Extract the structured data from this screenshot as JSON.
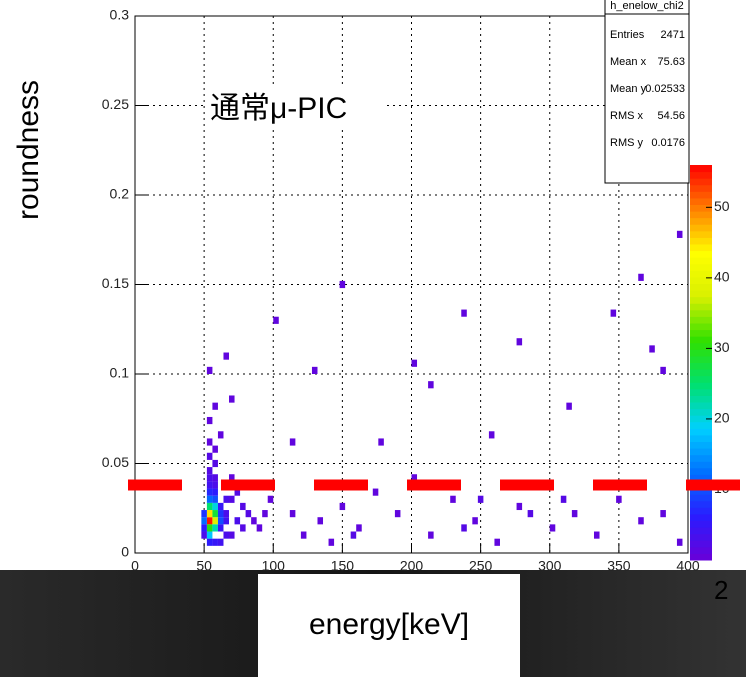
{
  "chart_data": {
    "type": "heatmap",
    "x_label": "energy[keV]",
    "y_label": "roundness",
    "annotation": "通常μ-PIC",
    "cut_text": "2",
    "xlim": [
      0,
      400
    ],
    "ylim": [
      0,
      0.3
    ],
    "xticks": [
      0,
      50,
      100,
      150,
      200,
      250,
      300,
      350,
      400
    ],
    "yticks": [
      0,
      0.05,
      0.1,
      0.15,
      0.2,
      0.25,
      0.3
    ],
    "grid": true,
    "bin_size": [
      4,
      0.004
    ],
    "zlim": [
      0,
      56
    ],
    "zticks": [
      10,
      20,
      30,
      40,
      50
    ],
    "palette": [
      "#6a00d8",
      "#2a1cff",
      "#0070ff",
      "#00d0ff",
      "#00e070",
      "#30e000",
      "#d8f000",
      "#ffff00",
      "#ff8000",
      "#ff0000"
    ],
    "threshold": 0.038,
    "threshold_color": "#ff0000",
    "cells": [
      [
        52,
        0.016,
        55
      ],
      [
        52,
        0.02,
        45
      ],
      [
        56,
        0.016,
        38
      ],
      [
        52,
        0.012,
        30
      ],
      [
        56,
        0.02,
        28
      ],
      [
        48,
        0.016,
        12
      ],
      [
        52,
        0.024,
        25
      ],
      [
        56,
        0.024,
        20
      ],
      [
        52,
        0.008,
        18
      ],
      [
        56,
        0.012,
        22
      ],
      [
        60,
        0.016,
        10
      ],
      [
        60,
        0.02,
        8
      ],
      [
        52,
        0.028,
        12
      ],
      [
        56,
        0.028,
        10
      ],
      [
        48,
        0.02,
        8
      ],
      [
        48,
        0.012,
        6
      ],
      [
        52,
        0.032,
        7
      ],
      [
        56,
        0.032,
        6
      ],
      [
        60,
        0.024,
        5
      ],
      [
        60,
        0.012,
        5
      ],
      [
        64,
        0.016,
        4
      ],
      [
        64,
        0.02,
        3
      ],
      [
        52,
        0.036,
        4
      ],
      [
        56,
        0.036,
        3
      ],
      [
        52,
        0.04,
        3
      ],
      [
        56,
        0.04,
        2
      ],
      [
        52,
        0.044,
        2
      ],
      [
        56,
        0.048,
        2
      ],
      [
        52,
        0.052,
        2
      ],
      [
        56,
        0.056,
        1
      ],
      [
        52,
        0.06,
        1
      ],
      [
        60,
        0.064,
        1
      ],
      [
        52,
        0.072,
        1
      ],
      [
        56,
        0.08,
        1
      ],
      [
        52,
        0.1,
        1
      ],
      [
        64,
        0.108,
        1
      ],
      [
        68,
        0.084,
        1
      ],
      [
        72,
        0.032,
        2
      ],
      [
        76,
        0.024,
        2
      ],
      [
        80,
        0.02,
        2
      ],
      [
        84,
        0.016,
        1
      ],
      [
        88,
        0.012,
        1
      ],
      [
        92,
        0.02,
        1
      ],
      [
        96,
        0.028,
        1
      ],
      [
        68,
        0.028,
        2
      ],
      [
        72,
        0.016,
        3
      ],
      [
        76,
        0.012,
        2
      ],
      [
        64,
        0.028,
        3
      ],
      [
        64,
        0.036,
        2
      ],
      [
        68,
        0.04,
        1
      ],
      [
        60,
        0.004,
        4
      ],
      [
        52,
        0.004,
        6
      ],
      [
        56,
        0.004,
        5
      ],
      [
        48,
        0.008,
        3
      ],
      [
        64,
        0.008,
        3
      ],
      [
        68,
        0.008,
        2
      ],
      [
        112,
        0.02,
        1
      ],
      [
        120,
        0.008,
        1
      ],
      [
        132,
        0.016,
        1
      ],
      [
        140,
        0.004,
        1
      ],
      [
        148,
        0.024,
        1
      ],
      [
        160,
        0.012,
        1
      ],
      [
        172,
        0.032,
        1
      ],
      [
        188,
        0.02,
        1
      ],
      [
        200,
        0.04,
        1
      ],
      [
        212,
        0.008,
        1
      ],
      [
        228,
        0.028,
        1
      ],
      [
        244,
        0.016,
        1
      ],
      [
        260,
        0.004,
        1
      ],
      [
        276,
        0.024,
        1
      ],
      [
        292,
        0.036,
        1
      ],
      [
        300,
        0.012,
        1
      ],
      [
        316,
        0.02,
        1
      ],
      [
        332,
        0.008,
        1
      ],
      [
        348,
        0.028,
        1
      ],
      [
        364,
        0.016,
        1
      ],
      [
        380,
        0.02,
        1
      ],
      [
        392,
        0.004,
        1
      ],
      [
        128,
        0.1,
        1
      ],
      [
        148,
        0.148,
        1
      ],
      [
        176,
        0.06,
        1
      ],
      [
        212,
        0.092,
        1
      ],
      [
        236,
        0.132,
        1
      ],
      [
        276,
        0.116,
        1
      ],
      [
        312,
        0.08,
        1
      ],
      [
        344,
        0.132,
        1
      ],
      [
        364,
        0.152,
        1
      ],
      [
        380,
        0.1,
        1
      ],
      [
        392,
        0.176,
        1
      ],
      [
        372,
        0.112,
        1
      ],
      [
        100,
        0.128,
        1
      ],
      [
        112,
        0.06,
        1
      ],
      [
        200,
        0.104,
        1
      ],
      [
        256,
        0.064,
        1
      ],
      [
        248,
        0.028,
        2
      ],
      [
        284,
        0.02,
        2
      ],
      [
        308,
        0.028,
        2
      ],
      [
        236,
        0.012,
        2
      ],
      [
        156,
        0.008,
        2
      ]
    ],
    "stats": {
      "title": "h_enelow_chi2",
      "rows": [
        [
          "Entries",
          2471
        ],
        [
          "Mean x",
          75.63
        ],
        [
          "Mean y",
          0.02533
        ],
        [
          "RMS x",
          54.56
        ],
        [
          "RMS y",
          0.0176
        ]
      ]
    }
  }
}
